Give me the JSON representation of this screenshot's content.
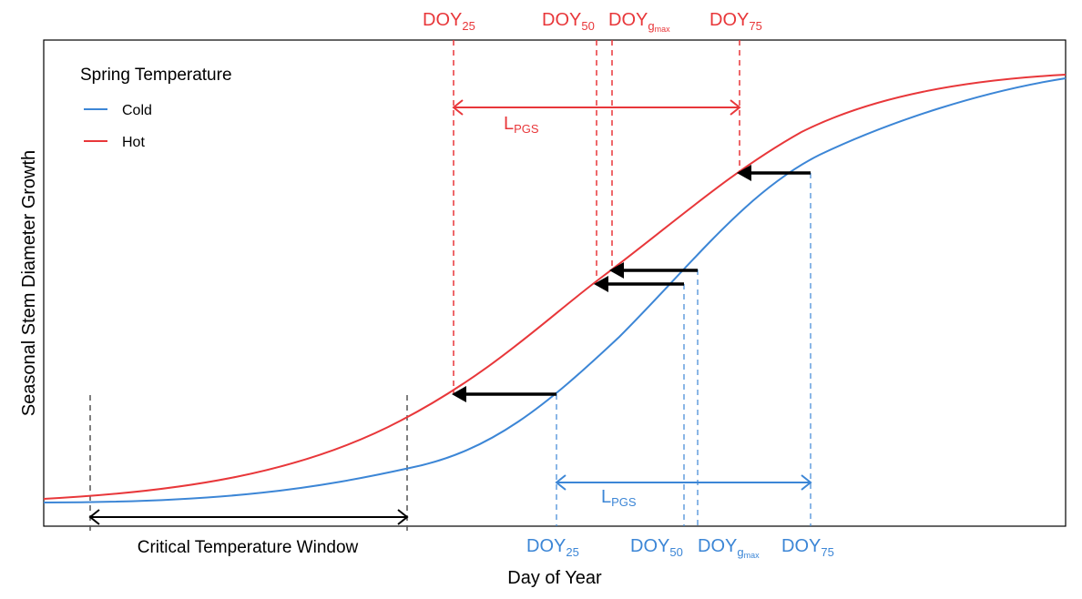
{
  "axes": {
    "xlabel": "Day of Year",
    "ylabel": "Seasonal Stem Diameter Growth"
  },
  "legend": {
    "title": "Spring Temperature",
    "items": [
      {
        "label": "Cold",
        "color": "#3c86d6"
      },
      {
        "label": "Hot",
        "color": "#e8373a"
      }
    ]
  },
  "markers_hot": [
    {
      "base": "DOY",
      "sub": "25"
    },
    {
      "base": "DOY",
      "sub": "50"
    },
    {
      "base": "DOY",
      "sub": "g",
      "subsub": "max"
    },
    {
      "base": "DOY",
      "sub": "75"
    }
  ],
  "markers_cold": [
    {
      "base": "DOY",
      "sub": "25"
    },
    {
      "base": "DOY",
      "sub": "50"
    },
    {
      "base": "DOY",
      "sub": "g",
      "subsub": "max"
    },
    {
      "base": "DOY",
      "sub": "75"
    }
  ],
  "lpgs": {
    "base": "L",
    "sub": "PGS"
  },
  "window_label": "Critical Temperature Window",
  "colors": {
    "hot": "#e8373a",
    "cold": "#3c86d6",
    "arrow": "#000000"
  }
}
